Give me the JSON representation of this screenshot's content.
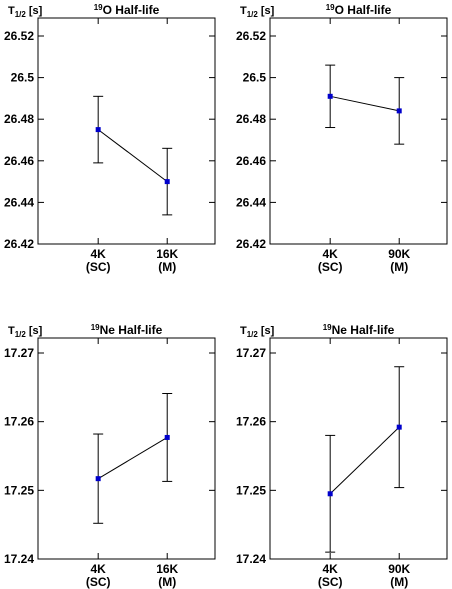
{
  "chart_data": [
    {
      "type": "line",
      "title_sup": "19",
      "title": "O Half-life",
      "ylabel_main": "T",
      "ylabel_sub": "1/2",
      "ylabel_unit": "[s]",
      "ylim": [
        26.42,
        26.53
      ],
      "yticks": [
        "26.42",
        "26.44",
        "26.46",
        "26.48",
        "26.5",
        "26.52"
      ],
      "categories": [
        [
          "4K",
          "(SC)"
        ],
        [
          "16K",
          "(M)"
        ]
      ],
      "series": [
        {
          "values": [
            26.475,
            26.45
          ],
          "errors": [
            0.016,
            0.016
          ]
        }
      ],
      "color": "#0000cc"
    },
    {
      "type": "line",
      "title_sup": "19",
      "title": "O Half-life",
      "ylabel_main": "T",
      "ylabel_sub": "1/2",
      "ylabel_unit": "[s]",
      "ylim": [
        26.42,
        26.53
      ],
      "yticks": [
        "26.42",
        "26.44",
        "26.46",
        "26.48",
        "26.5",
        "26.52"
      ],
      "categories": [
        [
          "4K",
          "(SC)"
        ],
        [
          "90K",
          "(M)"
        ]
      ],
      "series": [
        {
          "values": [
            26.491,
            26.484
          ],
          "errors": [
            0.015,
            0.016
          ]
        }
      ],
      "color": "#0000cc"
    },
    {
      "type": "line",
      "title_sup": "19",
      "title": "Ne Half-life",
      "ylabel_main": "T",
      "ylabel_sub": "1/2",
      "ylabel_unit": "[s]",
      "ylim": [
        17.24,
        17.272
      ],
      "yticks": [
        "17.24",
        "17.25",
        "17.26",
        "17.27"
      ],
      "categories": [
        [
          "4K",
          "(SC)"
        ],
        [
          "16K",
          "(M)"
        ]
      ],
      "series": [
        {
          "values": [
            17.2517,
            17.2577
          ],
          "errors": [
            0.0065,
            0.0064
          ]
        }
      ],
      "color": "#0000cc"
    },
    {
      "type": "line",
      "title_sup": "19",
      "title": "Ne Half-life",
      "ylabel_main": "T",
      "ylabel_sub": "1/2",
      "ylabel_unit": "[s]",
      "ylim": [
        17.24,
        17.272
      ],
      "yticks": [
        "17.24",
        "17.25",
        "17.26",
        "17.27"
      ],
      "categories": [
        [
          "4K",
          "(SC)"
        ],
        [
          "90K",
          "(M)"
        ]
      ],
      "series": [
        {
          "values": [
            17.2495,
            17.2592
          ],
          "errors": [
            0.0085,
            0.0088
          ]
        }
      ],
      "color": "#0000cc"
    }
  ]
}
